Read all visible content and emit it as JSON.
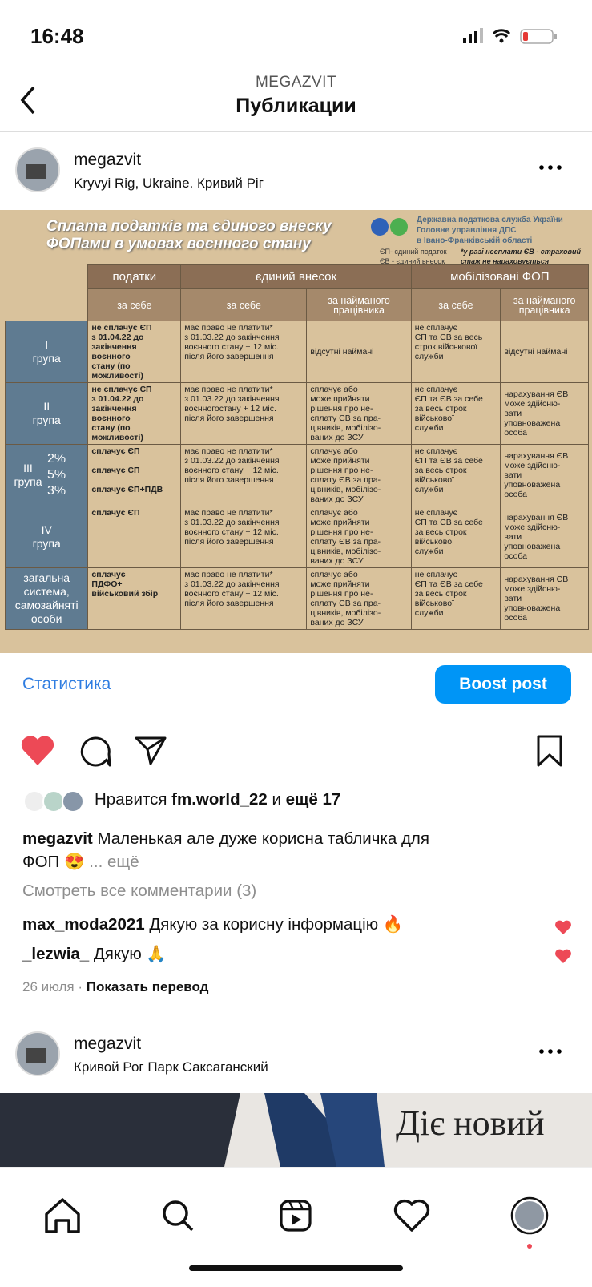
{
  "status": {
    "time": "16:48"
  },
  "header": {
    "account": "MEGAZVIT",
    "title": "Публикации"
  },
  "post": {
    "username": "megazvit",
    "location": "Kryvyi Rig, Ukraine. Кривий Ріг",
    "image": {
      "title": "Сплата податків та єдиного внеску\nФОПами в умовах воєнного стану",
      "org": "Державна податкова служба України\nГоловне управління ДПС\nв Івано-Франківській області",
      "legend": "ЄП- єдиний податок\nЄВ - єдиний внесок",
      "note": "*у разі несплати ЄВ - страховий\nстаж не нараховується",
      "header_top": [
        "податки",
        "єдиний внесок",
        "мобілізовані ФОП"
      ],
      "header_sub": [
        "за себе",
        "за себе",
        "за найманого\nпрацівника",
        "за себе",
        "за найманого\nпрацівника"
      ],
      "rows": [
        {
          "group": "I\nгрупа",
          "cells": [
            "не сплачує ЄП\nз 01.04.22 до\nзакінчення\nвоєнного\nстану (по можливості)",
            "має право не платити*\nз 01.03.22 до закінчення\nвоєнного стану + 12 міс.\nпісля його завершення",
            "відсутні наймані",
            "не сплачує\nЄП та ЄВ за весь\nстрок військової\nслужби",
            "відсутні наймані"
          ]
        },
        {
          "group": "II\nгрупа",
          "cells": [
            "не сплачує ЄП\nз 01.04.22 до\nзакінчення\nвоєнного\nстану (по можливості)",
            "має право не платити*\nз 01.03.22 до закінчення\nвоєнногостану + 12 міс.\nпісля його завершення",
            "сплачує або\nможе прийняти\nрішення про не-\nсплату ЄВ за пра-\nцівників, мобілізо-\nваних до ЗСУ",
            "не сплачує\nЄП та ЄВ за себе\nза весь строк\nвійськової\nслужби",
            "нарахування ЄВ\nможе здійсню-\nвати\nуповноважена\nособа"
          ]
        },
        {
          "group": "III\nгрупа",
          "rates": "2%\n5%\n3%",
          "cells": [
            "сплачує ЄП\n\nсплачує ЄП\n\nсплачує ЄП+ПДВ",
            "має право не платити*\nз 01.03.22 до закінчення\nвоєнного стану + 12 міс.\nпісля його завершення",
            "сплачує або\nможе прийняти\nрішення про не-\nсплату ЄВ за пра-\nцівників, мобілізо-\nваних до ЗСУ",
            "не сплачує\nЄП та ЄВ за себе\nза весь строк\nвійськової\nслужби",
            "нарахування ЄВ\nможе здійсню-\nвати\nуповноважена\nособа"
          ]
        },
        {
          "group": "IV\nгрупа",
          "cells": [
            "сплачує ЄП",
            "має право не платити*\nз 01.03.22 до закінчення\nвоєнного стану + 12 міс.\nпісля його завершення",
            "сплачує або\nможе прийняти\nрішення про не-\nсплату ЄВ за пра-\nцівників, мобілізо-\nваних до ЗСУ",
            "не сплачує\nЄП та ЄВ за себе\nза весь строк\nвійськової\nслужби",
            "нарахування ЄВ\nможе здійсню-\nвати\nуповноважена\nособа"
          ]
        },
        {
          "group": "загальна\nсистема,\nсамозайняті\nособи",
          "cells": [
            "сплачує\nПДФО+\nвійськовий збір",
            "має право не платити*\nз 01.03.22 до закінчення\nвоєнного стану + 12 міс.\nпісля його завершення",
            "сплачує або\nможе прийняти\nрішення про не-\nсплату ЄВ за пра-\nцівників, мобілізо-\nваних до ЗСУ",
            "не сплачує\nЄП та ЄВ за себе\nза весь строк\nвійськової\nслужби",
            "нарахування ЄВ\nможе здійсню-\nвати\nуповноважена\nособа"
          ]
        }
      ]
    },
    "stats_link": "Статистика",
    "boost": "Boost post",
    "likes": {
      "prefix": "Нравится",
      "user": "fm.world_22",
      "conj": "и",
      "more": "ещё 17"
    },
    "caption": {
      "username": "megazvit",
      "text": "Маленькая але дуже корисна табличка для\nФОП 😍",
      "more": "... ещё"
    },
    "view_comments": "Смотреть все комментарии (3)",
    "comments": [
      {
        "user": "max_moda2021",
        "text": "Дякую за корисну інформацію 🔥"
      },
      {
        "user": "_lezwia_",
        "text": "Дякую 🙏"
      }
    ],
    "date": "26 июля",
    "translate": "Показать перевод"
  },
  "next_post": {
    "username": "megazvit",
    "location": "Кривой Рог Парк Саксаганский",
    "image_text": "Діє новий"
  }
}
